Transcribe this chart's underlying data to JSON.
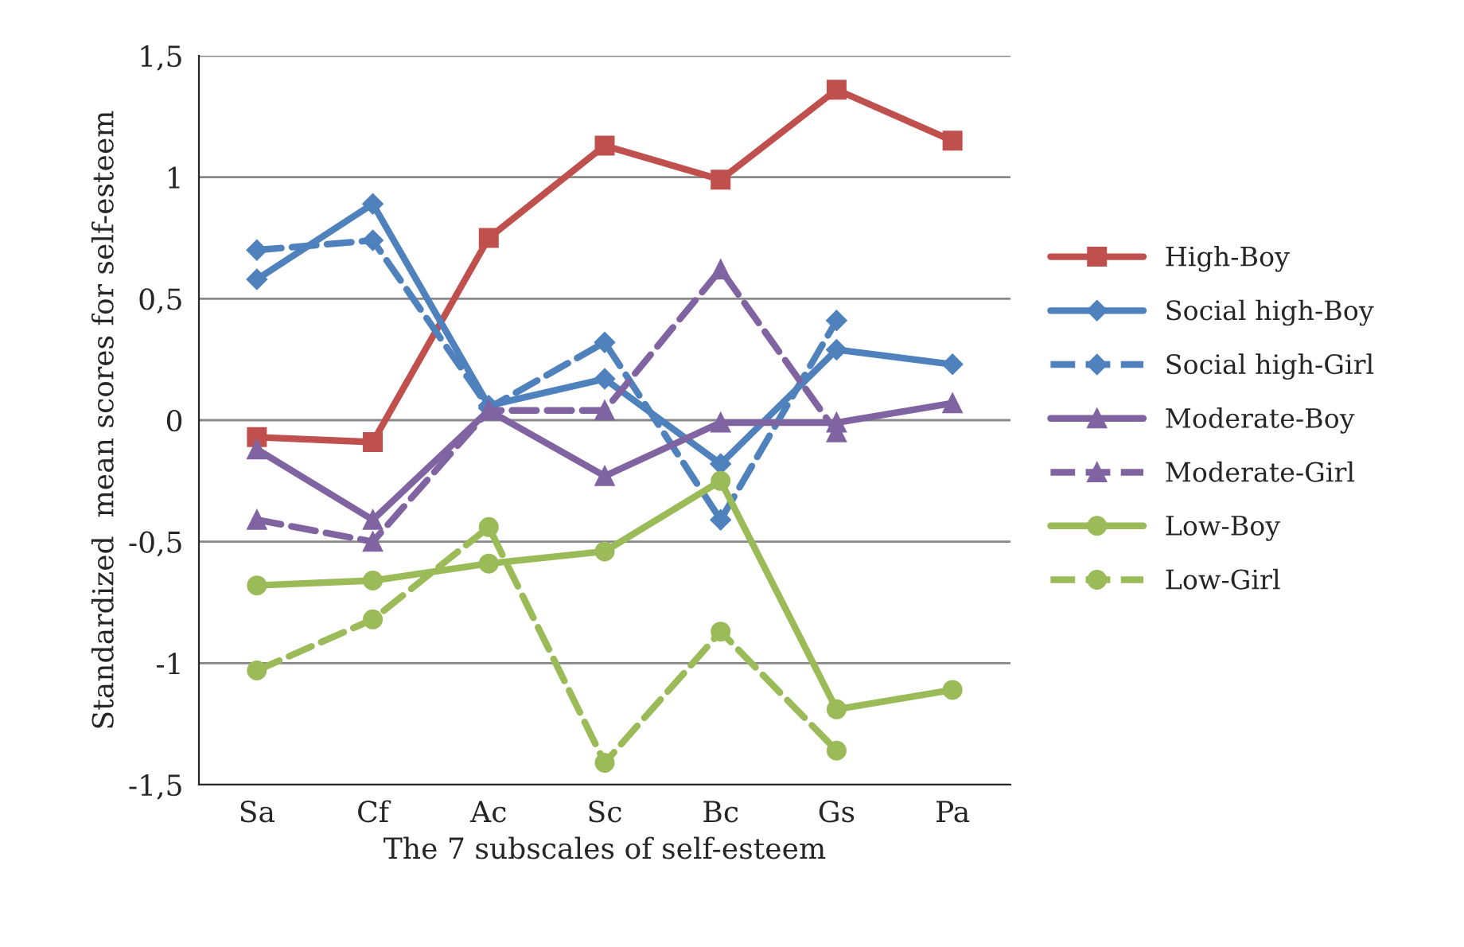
{
  "chart_data": {
    "type": "line",
    "xlabel": "The 7 subscales of self-esteem",
    "ylabel": "Standardized  mean scores for self-esteem",
    "categories": [
      "Sa",
      "Cf",
      "Ac",
      "Sc",
      "Bc",
      "Gs",
      "Pa"
    ],
    "series": [
      {
        "name": "High-Boy",
        "color": "#c0504d",
        "marker": "square",
        "line_style": "solid",
        "values": [
          -0.07,
          -0.09,
          0.75,
          1.13,
          0.99,
          1.36,
          1.15
        ]
      },
      {
        "name": "Social high-Boy",
        "color": "#4f81bd",
        "marker": "diamond",
        "line_style": "solid",
        "values": [
          0.58,
          0.89,
          0.06,
          0.17,
          -0.18,
          0.29,
          0.23
        ]
      },
      {
        "name": "Social high-Girl",
        "color": "#4f81bd",
        "marker": "diamond",
        "line_style": "dashed",
        "values": [
          0.7,
          0.74,
          0.05,
          0.32,
          -0.41,
          0.41,
          null
        ]
      },
      {
        "name": "Moderate-Boy",
        "color": "#8064a2",
        "marker": "triangle",
        "line_style": "solid",
        "values": [
          -0.12,
          -0.41,
          0.04,
          -0.23,
          -0.01,
          -0.01,
          0.07
        ]
      },
      {
        "name": "Moderate-Girl",
        "color": "#8064a2",
        "marker": "triangle",
        "line_style": "dashed",
        "values": [
          -0.41,
          -0.5,
          0.04,
          0.04,
          0.62,
          -0.05,
          null
        ]
      },
      {
        "name": "Low-Boy",
        "color": "#9bbb59",
        "marker": "circle",
        "line_style": "solid",
        "values": [
          -0.68,
          -0.66,
          -0.59,
          -0.54,
          -0.25,
          -1.19,
          -1.11
        ]
      },
      {
        "name": "Low-Girl",
        "color": "#9bbb59",
        "marker": "circle",
        "line_style": "dashed",
        "values": [
          -1.03,
          -0.82,
          -0.44,
          -1.41,
          -0.87,
          -1.36,
          null
        ]
      }
    ],
    "ylim": [
      -1.5,
      1.5
    ],
    "yticks": [
      {
        "value": -1.5,
        "label": "-1,5"
      },
      -1,
      {
        "value": -0.5,
        "label": "-0,5"
      },
      0,
      {
        "value": 0.5,
        "label": "0,5"
      },
      1,
      {
        "value": 1.5,
        "label": "1,5"
      }
    ],
    "grid": "y",
    "legend": "right"
  }
}
